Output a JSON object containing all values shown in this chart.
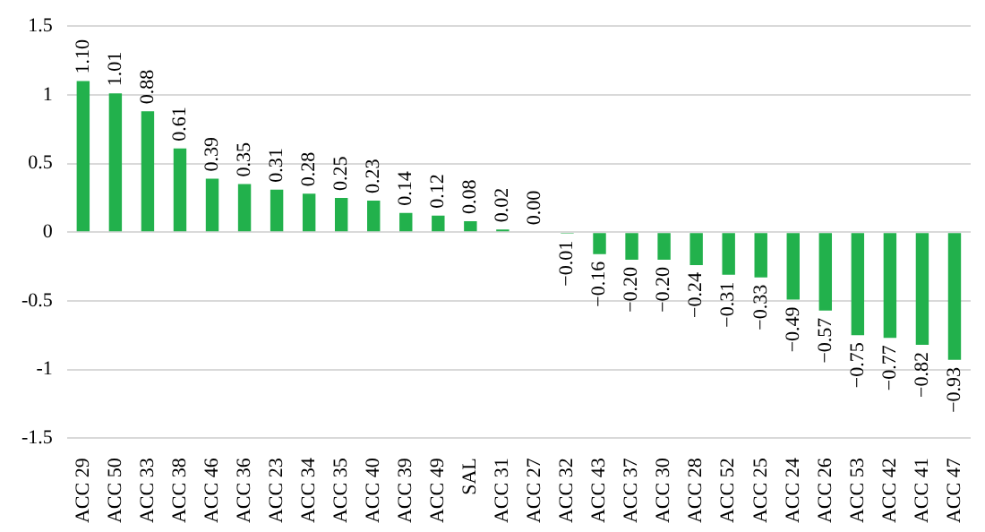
{
  "chart_data": {
    "type": "bar",
    "categories": [
      "ACC 29",
      "ACC 50",
      "ACC 33",
      "ACC 38",
      "ACC 46",
      "ACC 36",
      "ACC 23",
      "ACC 34",
      "ACC 35",
      "ACC 40",
      "ACC 39",
      "ACC 49",
      "SAL",
      "ACC 31",
      "ACC 27",
      "ACC 32",
      "ACC 43",
      "ACC 37",
      "ACC 30",
      "ACC 28",
      "ACC 52",
      "ACC 25",
      "ACC 24",
      "ACC 26",
      "ACC 53",
      "ACC 42",
      "ACC 41",
      "ACC 47"
    ],
    "values": [
      1.1,
      1.01,
      0.88,
      0.61,
      0.39,
      0.35,
      0.31,
      0.28,
      0.25,
      0.23,
      0.14,
      0.12,
      0.08,
      0.02,
      0.0,
      -0.01,
      -0.16,
      -0.2,
      -0.2,
      -0.24,
      -0.31,
      -0.33,
      -0.49,
      -0.57,
      -0.75,
      -0.77,
      -0.82,
      -0.93
    ],
    "value_labels": [
      "1.10",
      "1.01",
      "0.88",
      "0.61",
      "0.39",
      "0.35",
      "0.31",
      "0.28",
      "0.25",
      "0.23",
      "0.14",
      "0.12",
      "0.08",
      "0.02",
      "0.00",
      "−0.01",
      "−0.16",
      "−0.20",
      "−0.20",
      "−0.24",
      "−0.31",
      "−0.33",
      "−0.49",
      "−0.57",
      "−0.75",
      "−0.77",
      "−0.82",
      "−0.93"
    ],
    "color": "#22b14c",
    "ylim": [
      -1.5,
      1.5
    ],
    "yticks": [
      -1.5,
      -1,
      -0.5,
      0,
      0.5,
      1,
      1.5
    ],
    "grid": "y",
    "legend": false
  }
}
